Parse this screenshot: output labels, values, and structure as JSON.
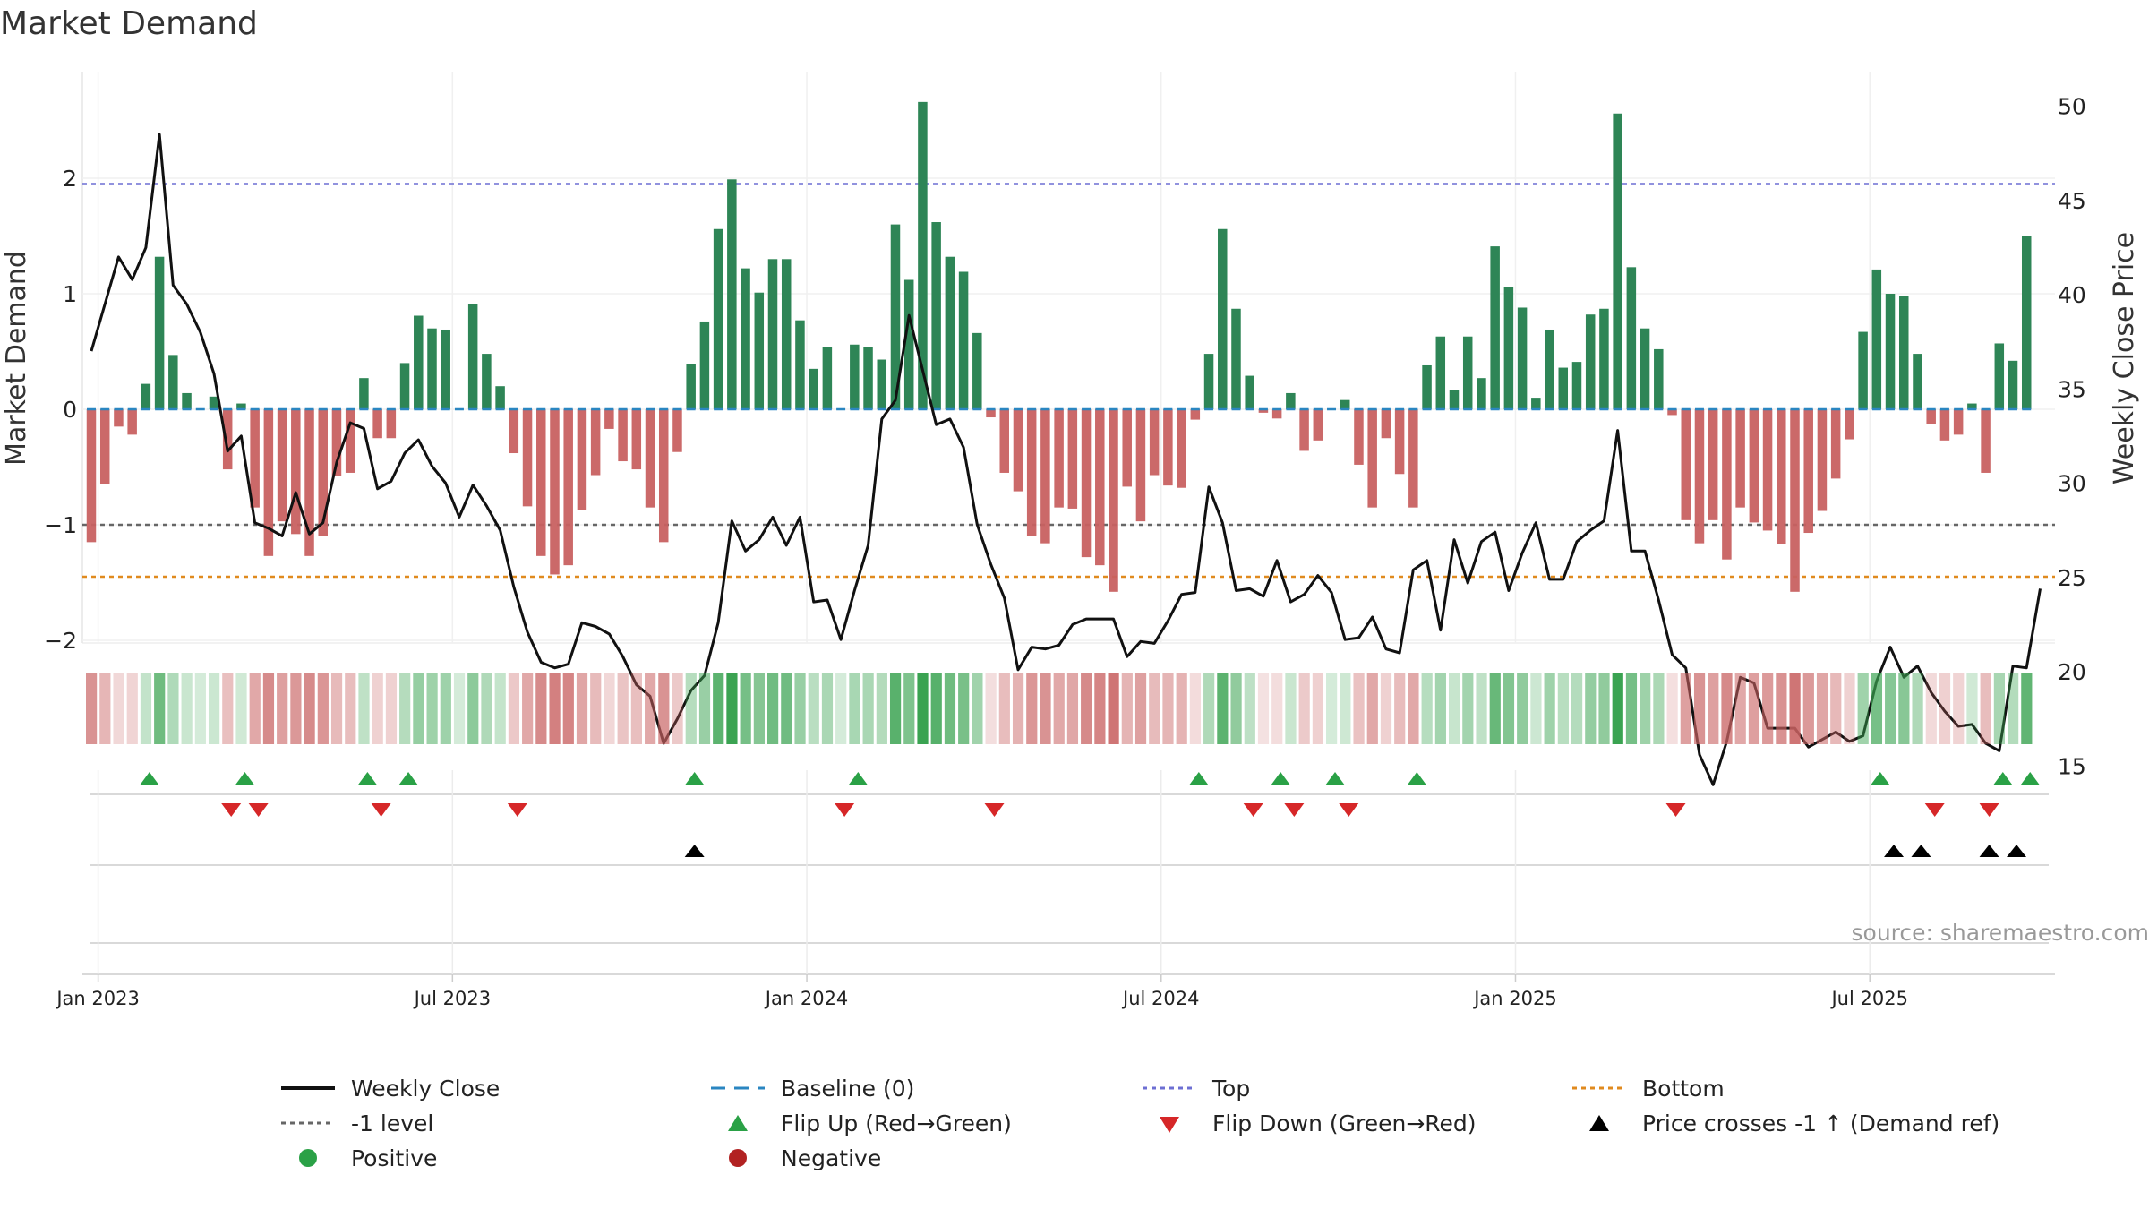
{
  "chart_data": {
    "type": "bar+line",
    "title": "Market Demand",
    "ylabel": "Market Demand",
    "y2label": "Weekly Close Price",
    "ylim": [
      -2.0,
      2.7
    ],
    "y2lim": [
      12.0,
      50.0
    ],
    "yticks": [
      "2",
      "1",
      "0",
      "−1",
      "−2"
    ],
    "y2ticks": [
      "50",
      "45",
      "40",
      "35",
      "30",
      "25",
      "20",
      "15"
    ],
    "xticks": [
      "Jan 2023",
      "Jul 2023",
      "Jan 2024",
      "Jul 2024",
      "Jan 2025",
      "Jul 2025"
    ],
    "reference_lines": {
      "top": 1.95,
      "bottom": -1.45,
      "minus_one": -1.0,
      "baseline": 0.0
    },
    "source": "source: sharemaestro.com",
    "demand": [
      -1.15,
      -0.65,
      -0.15,
      -0.22,
      0.22,
      1.32,
      0.47,
      0.14,
      0.0,
      0.11,
      -0.52,
      0.05,
      -0.85,
      -1.27,
      -0.97,
      -1.08,
      -1.27,
      -1.1,
      -0.58,
      -0.55,
      0.27,
      -0.25,
      -0.25,
      0.4,
      0.81,
      0.7,
      0.69,
      0.0,
      0.91,
      0.48,
      0.2,
      -0.38,
      -0.84,
      -1.27,
      -1.43,
      -1.35,
      -0.87,
      -0.57,
      -0.17,
      -0.45,
      -0.52,
      -0.85,
      -1.15,
      -0.37,
      0.39,
      0.76,
      1.56,
      1.99,
      1.22,
      1.01,
      1.3,
      1.3,
      0.77,
      0.35,
      0.54,
      0.0,
      0.56,
      0.54,
      0.43,
      1.6,
      1.12,
      2.66,
      1.62,
      1.32,
      1.19,
      0.66,
      -0.07,
      -0.55,
      -0.71,
      -1.1,
      -1.16,
      -0.85,
      -0.86,
      -1.28,
      -1.35,
      -1.58,
      -0.67,
      -0.97,
      -0.57,
      -0.66,
      -0.68,
      -0.09,
      0.48,
      1.56,
      0.87,
      0.29,
      -0.03,
      -0.08,
      0.14,
      -0.36,
      -0.27,
      0.0,
      0.08,
      -0.48,
      -0.85,
      -0.25,
      -0.56,
      -0.85,
      0.38,
      0.63,
      0.17,
      0.63,
      0.27,
      1.41,
      1.06,
      0.88,
      0.1,
      0.69,
      0.36,
      0.41,
      0.82,
      0.87,
      2.56,
      1.23,
      0.7,
      0.52,
      -0.05,
      -0.96,
      -1.16,
      -0.96,
      -1.3,
      -0.85,
      -0.98,
      -1.05,
      -1.17,
      -1.58,
      -1.07,
      -0.88,
      -0.6,
      -0.26,
      0.67,
      1.21,
      1.0,
      0.98,
      0.48,
      -0.13,
      -0.27,
      -0.22,
      0.05,
      -0.55,
      0.57,
      0.42,
      1.5
    ],
    "price": [
      37.0,
      39.5,
      42.0,
      40.8,
      42.5,
      48.5,
      40.5,
      39.5,
      38.0,
      35.8,
      31.7,
      32.5,
      27.9,
      27.6,
      27.2,
      29.5,
      27.3,
      27.9,
      31.1,
      33.2,
      32.9,
      29.7,
      30.1,
      31.6,
      32.3,
      30.9,
      30.0,
      28.2,
      29.9,
      28.8,
      27.5,
      24.5,
      22.1,
      20.5,
      20.2,
      20.4,
      22.6,
      22.4,
      22.0,
      20.8,
      19.3,
      18.7,
      16.2,
      17.5,
      19.0,
      19.8,
      22.6,
      28.0,
      26.4,
      27.0,
      28.2,
      26.7,
      28.2,
      23.7,
      23.8,
      21.7,
      24.3,
      26.7,
      33.4,
      34.4,
      38.9,
      36.0,
      33.1,
      33.4,
      31.9,
      27.8,
      25.7,
      23.9,
      20.1,
      21.3,
      21.2,
      21.4,
      22.5,
      22.8,
      22.8,
      22.8,
      20.8,
      21.6,
      21.5,
      22.7,
      24.1,
      24.2,
      29.8,
      27.9,
      24.3,
      24.4,
      24.0,
      25.9,
      23.7,
      24.1,
      25.1,
      24.2,
      21.7,
      21.8,
      22.9,
      21.2,
      21.0,
      25.4,
      25.9,
      22.2,
      27.0,
      24.7,
      26.9,
      27.4,
      24.3,
      26.3,
      27.9,
      24.9,
      24.9,
      26.9,
      27.5,
      28.0,
      32.8,
      26.4,
      26.4,
      23.8,
      20.9,
      20.2,
      15.6,
      14.0,
      16.3,
      19.7,
      19.4,
      17.0,
      17.0,
      17.0,
      16.0,
      16.4,
      16.8,
      16.3,
      16.6,
      19.5,
      21.3,
      19.7,
      20.3,
      18.9,
      17.9,
      17.1,
      17.2,
      16.2,
      15.8,
      20.3,
      20.2,
      24.4
    ],
    "flip_up_idx": [
      4,
      11,
      20,
      23,
      44,
      56,
      81,
      87,
      91,
      97,
      131,
      140,
      142
    ],
    "flip_down_idx": [
      10,
      12,
      21,
      31,
      55,
      66,
      85,
      88,
      92,
      116,
      135,
      139
    ],
    "cross_idx": [
      44,
      132,
      134,
      139,
      141
    ],
    "colors": {
      "positive": "#2e8556",
      "negative": "#c86161",
      "close": "#111111",
      "baseline": "#2a86c1",
      "top": "#6d6fd3",
      "bottom": "#e08a1e",
      "minus_one": "#666666",
      "flip_up": "#2aa146",
      "flip_down": "#d62728",
      "cross": "#000000"
    }
  },
  "legend": [
    {
      "label": "Weekly Close",
      "icon": "solid-line"
    },
    {
      "label": "Baseline (0)",
      "icon": "dashed-line"
    },
    {
      "label": "Top",
      "icon": "dotted-line"
    },
    {
      "label": "Bottom",
      "icon": "dotted-line"
    },
    {
      "label": "-1 level",
      "icon": "dotted-line"
    },
    {
      "label": "Flip Up (Red→Green)",
      "icon": "triangle-up"
    },
    {
      "label": "Flip Down (Green→Red)",
      "icon": "triangle-down"
    },
    {
      "label": "Price crosses -1 ↑ (Demand ref)",
      "icon": "triangle-up"
    },
    {
      "label": "Positive",
      "icon": "circle"
    },
    {
      "label": "Negative",
      "icon": "circle"
    }
  ]
}
